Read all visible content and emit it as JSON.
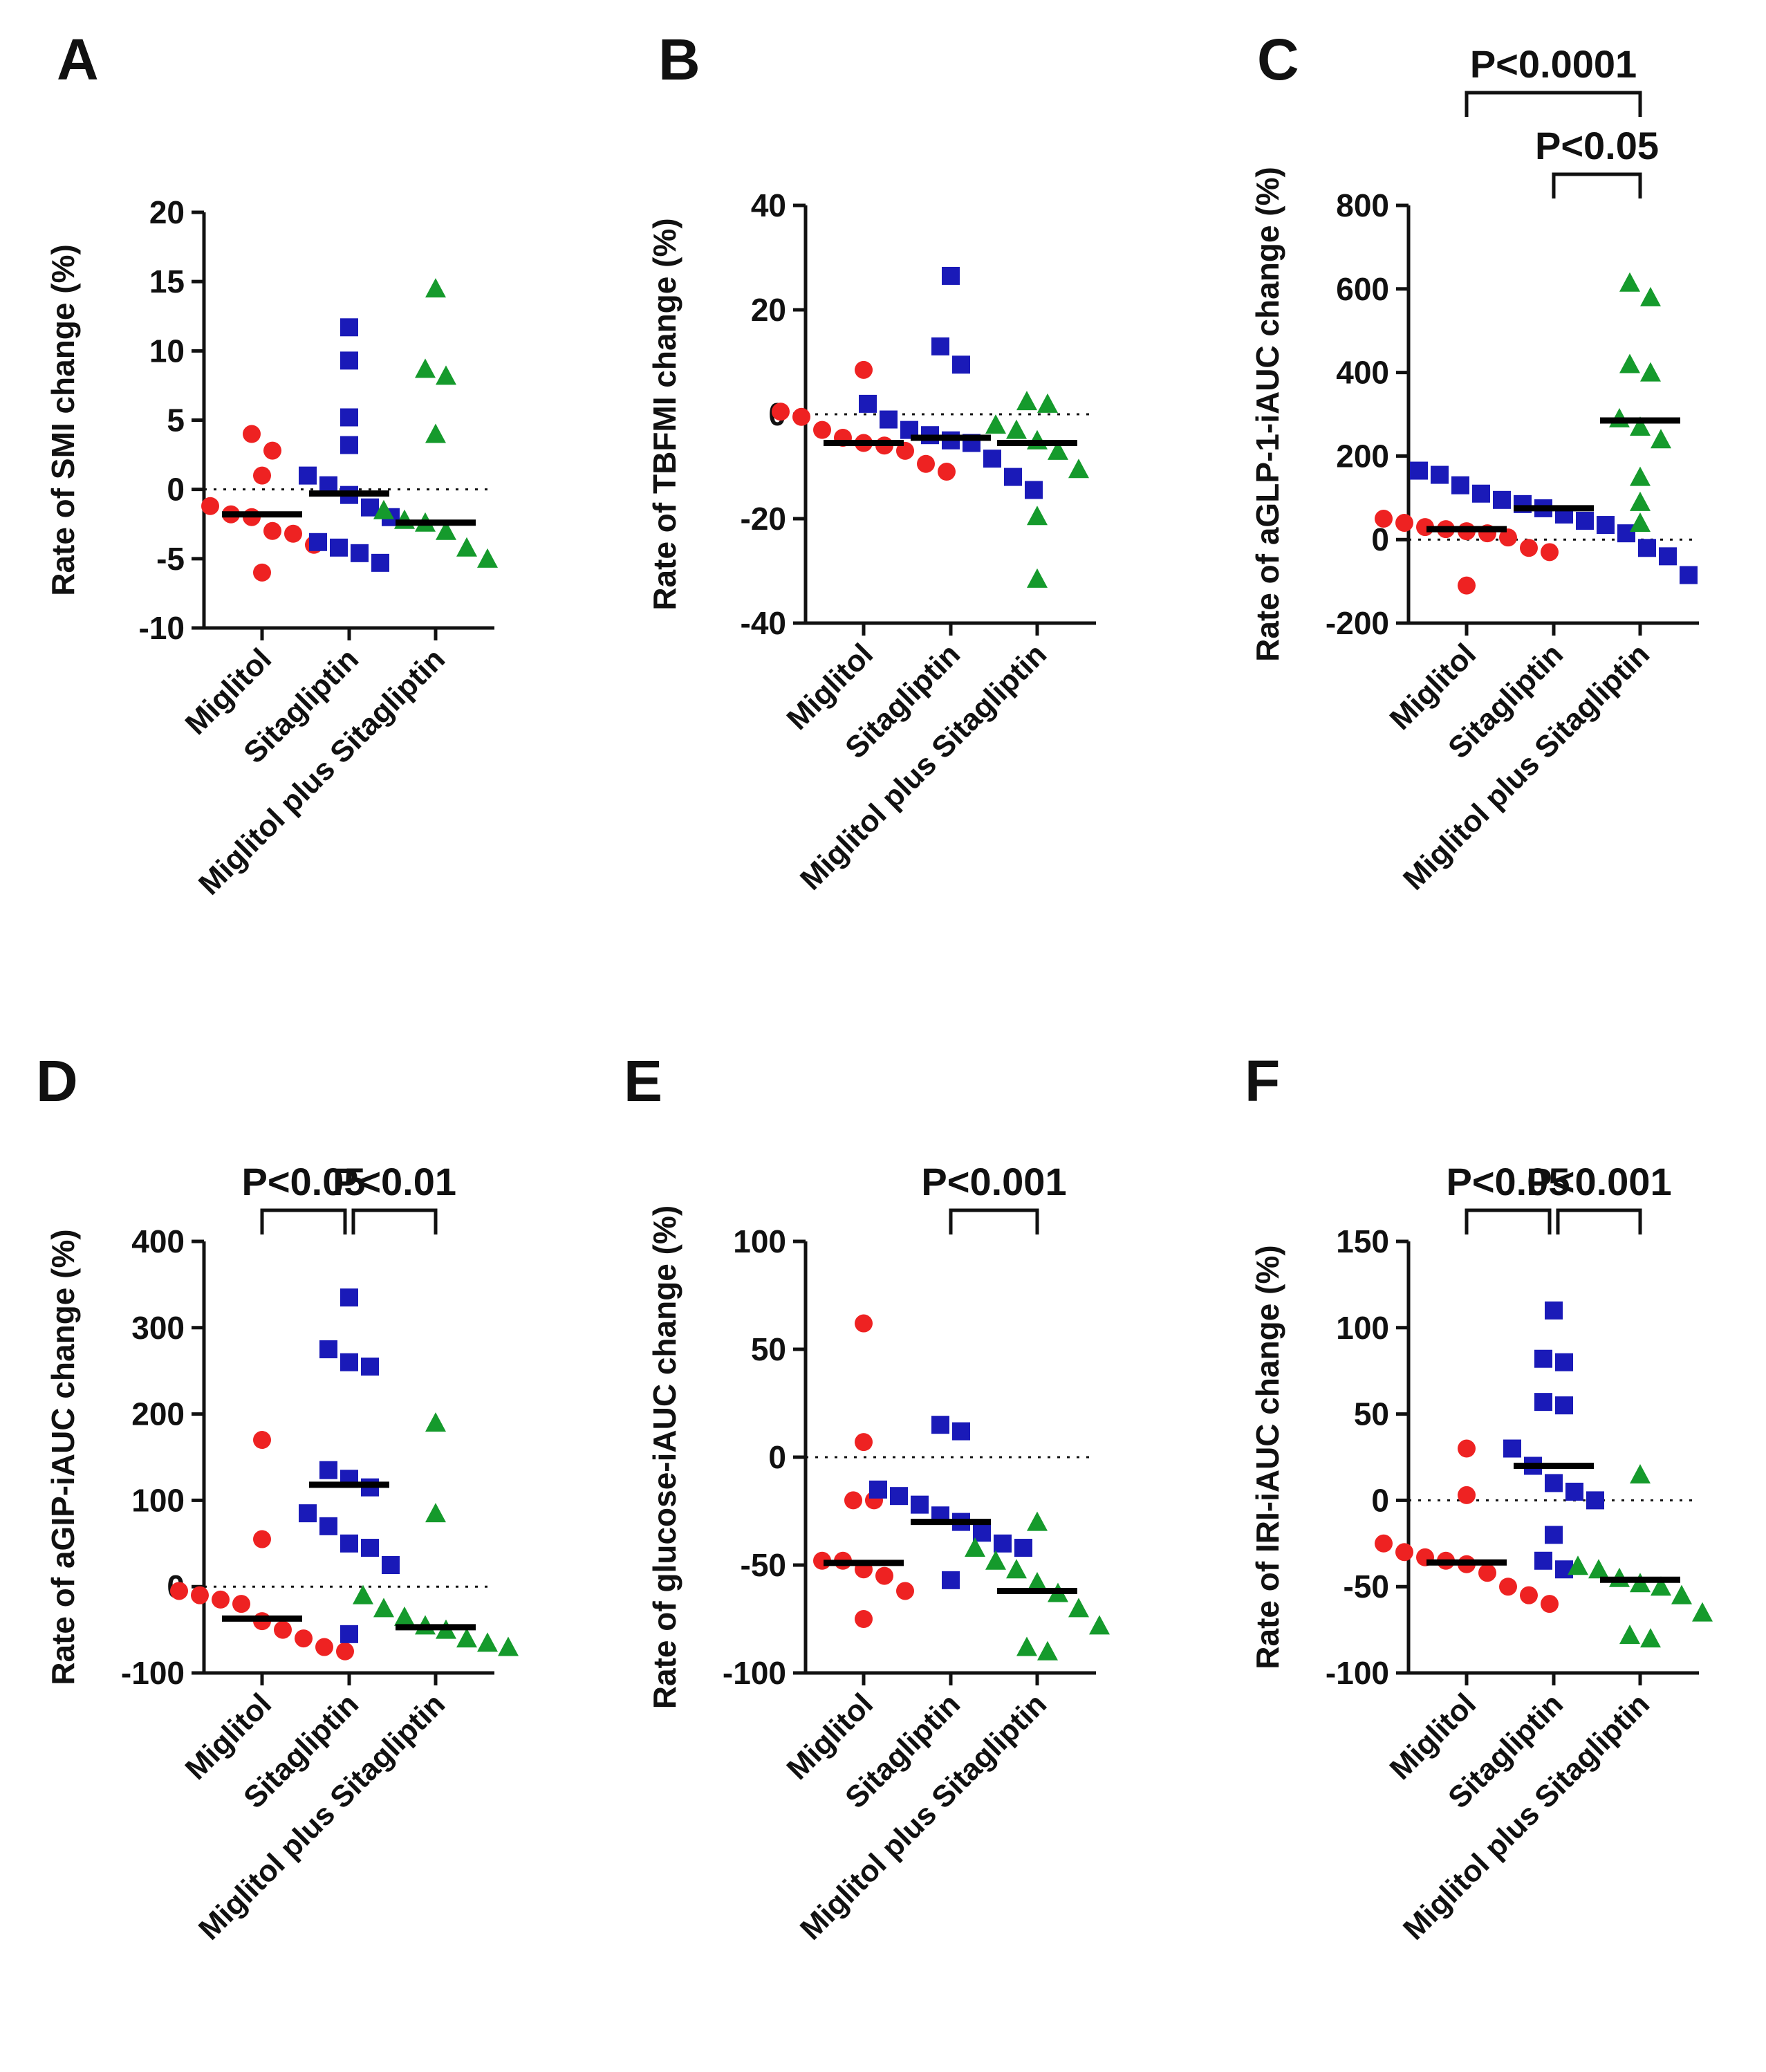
{
  "figure": {
    "groups": [
      "Miglitol",
      "Sitagliptin",
      "Miglitol plus Sitagliptin"
    ],
    "colors": {
      "Miglitol": "#ee2222",
      "Sitagliptin": "#1a1ab8",
      "Miglitol plus Sitagliptin": "#159a2c"
    },
    "median_color": "#000000"
  },
  "chart_data": [
    {
      "panel": "A",
      "type": "scatter",
      "ylabel": "Rate of SMI change (%)",
      "ylim": [
        -10,
        20
      ],
      "yticks": [
        -10,
        -5,
        0,
        5,
        10,
        15,
        20
      ],
      "categories": [
        "Miglitol",
        "Sitagliptin",
        "Miglitol plus Sitagliptin"
      ],
      "series": [
        {
          "name": "Miglitol",
          "marker": "circle",
          "values": [
            4.0,
            2.8,
            1.0,
            -1.2,
            -1.8,
            -2.0,
            -3.0,
            -4.0,
            -3.2,
            -6.0
          ],
          "median": -1.8
        },
        {
          "name": "Sitagliptin",
          "marker": "square",
          "values": [
            11.7,
            9.3,
            5.2,
            3.2,
            1.0,
            0.3,
            -0.4,
            -1.3,
            -2.0,
            -3.8,
            -4.2,
            -4.6,
            -5.3
          ],
          "median": -0.3
        },
        {
          "name": "Miglitol plus Sitagliptin",
          "marker": "triangle",
          "values": [
            14.5,
            8.7,
            8.2,
            4.0,
            -1.5,
            -2.2,
            -2.4,
            -3.0,
            -4.2,
            -5.0
          ],
          "median": -2.4
        }
      ],
      "annotations": []
    },
    {
      "panel": "B",
      "type": "scatter",
      "ylabel": "Rate of TBFMI change (%)",
      "ylim": [
        -40,
        40
      ],
      "yticks": [
        -40,
        -20,
        0,
        20,
        40
      ],
      "categories": [
        "Miglitol",
        "Sitagliptin",
        "Miglitol plus Sitagliptin"
      ],
      "series": [
        {
          "name": "Miglitol",
          "marker": "circle",
          "values": [
            8.5,
            0.5,
            -0.5,
            -3.0,
            -4.5,
            -5.5,
            -6.0,
            -7.0,
            -9.5,
            -11.0
          ],
          "median": -5.5
        },
        {
          "name": "Sitagliptin",
          "marker": "square",
          "values": [
            26.5,
            13.0,
            9.5,
            2.0,
            -1.0,
            -3.0,
            -4.0,
            -5.0,
            -5.5,
            -8.5,
            -12.0,
            -14.5
          ],
          "median": -4.5
        },
        {
          "name": "Miglitol plus Sitagliptin",
          "marker": "triangle",
          "values": [
            2.5,
            2.0,
            -2.0,
            -3.0,
            -5.0,
            -7.0,
            -10.5,
            -19.5,
            -31.5
          ],
          "median": -5.5
        }
      ],
      "annotations": []
    },
    {
      "panel": "C",
      "type": "scatter",
      "ylabel": "Rate of aGLP-1-iAUC change (%)",
      "ylim": [
        -200,
        800
      ],
      "yticks": [
        -200,
        0,
        200,
        400,
        600,
        800
      ],
      "categories": [
        "Miglitol",
        "Sitagliptin",
        "Miglitol plus Sitagliptin"
      ],
      "series": [
        {
          "name": "Miglitol",
          "marker": "circle",
          "values": [
            50,
            40,
            30,
            25,
            20,
            15,
            5,
            -20,
            -30,
            -110
          ],
          "median": 25
        },
        {
          "name": "Sitagliptin",
          "marker": "square",
          "values": [
            165,
            155,
            130,
            110,
            95,
            85,
            75,
            60,
            45,
            35,
            15,
            -20,
            -40,
            -85
          ],
          "median": 75
        },
        {
          "name": "Miglitol plus Sitagliptin",
          "marker": "triangle",
          "values": [
            615,
            580,
            420,
            400,
            290,
            270,
            240,
            150,
            90,
            40
          ],
          "median": 285
        }
      ],
      "annotations": [
        {
          "from": "Miglitol",
          "to": "Miglitol plus Sitagliptin",
          "level": 2,
          "label": "P<0.0001"
        },
        {
          "from": "Sitagliptin",
          "to": "Miglitol plus Sitagliptin",
          "level": 1,
          "label": "P<0.05"
        }
      ]
    },
    {
      "panel": "D",
      "type": "scatter",
      "ylabel": "Rate of aGIP-iAUC change (%)",
      "ylim": [
        -100,
        400
      ],
      "yticks": [
        -100,
        0,
        100,
        200,
        300,
        400
      ],
      "categories": [
        "Miglitol",
        "Sitagliptin",
        "Miglitol plus Sitagliptin"
      ],
      "series": [
        {
          "name": "Miglitol",
          "marker": "circle",
          "values": [
            170,
            55,
            -5,
            -10,
            -15,
            -20,
            -40,
            -50,
            -60,
            -70,
            -75
          ],
          "median": -37
        },
        {
          "name": "Sitagliptin",
          "marker": "square",
          "values": [
            335,
            275,
            260,
            255,
            135,
            125,
            115,
            85,
            70,
            50,
            45,
            25,
            -55
          ],
          "median": 118
        },
        {
          "name": "Miglitol plus Sitagliptin",
          "marker": "triangle",
          "values": [
            190,
            85,
            -10,
            -25,
            -35,
            -45,
            -50,
            -60,
            -65,
            -70
          ],
          "median": -47
        }
      ],
      "annotations": [
        {
          "from": "Miglitol",
          "to": "Sitagliptin",
          "level": 1,
          "label": "P<0.05"
        },
        {
          "from": "Sitagliptin",
          "to": "Miglitol plus Sitagliptin",
          "level": 1,
          "label": "P<0.01"
        }
      ]
    },
    {
      "panel": "E",
      "type": "scatter",
      "ylabel": "Rate of glucose-iAUC change (%)",
      "ylim": [
        -100,
        100
      ],
      "yticks": [
        -100,
        -50,
        0,
        50,
        100
      ],
      "categories": [
        "Miglitol",
        "Sitagliptin",
        "Miglitol plus Sitagliptin"
      ],
      "series": [
        {
          "name": "Miglitol",
          "marker": "circle",
          "values": [
            62,
            7,
            -20,
            -20,
            -48,
            -48,
            -52,
            -55,
            -62,
            -75
          ],
          "median": -49
        },
        {
          "name": "Sitagliptin",
          "marker": "square",
          "values": [
            15,
            12,
            -15,
            -18,
            -22,
            -27,
            -30,
            -35,
            -40,
            -42,
            -57
          ],
          "median": -30
        },
        {
          "name": "Miglitol plus Sitagliptin",
          "marker": "triangle",
          "values": [
            -30,
            -42,
            -48,
            -52,
            -58,
            -63,
            -70,
            -78,
            -88,
            -90
          ],
          "median": -62
        }
      ],
      "annotations": [
        {
          "from": "Sitagliptin",
          "to": "Miglitol plus Sitagliptin",
          "level": 1,
          "label": "P<0.001"
        }
      ]
    },
    {
      "panel": "F",
      "type": "scatter",
      "ylabel": "Rate of IRI-iAUC change (%)",
      "ylim": [
        -100,
        150
      ],
      "yticks": [
        -100,
        -50,
        0,
        50,
        100,
        150
      ],
      "categories": [
        "Miglitol",
        "Sitagliptin",
        "Miglitol plus Sitagliptin"
      ],
      "series": [
        {
          "name": "Miglitol",
          "marker": "circle",
          "values": [
            30,
            3,
            -25,
            -30,
            -33,
            -35,
            -37,
            -42,
            -50,
            -55,
            -60
          ],
          "median": -36
        },
        {
          "name": "Sitagliptin",
          "marker": "square",
          "values": [
            110,
            82,
            80,
            57,
            55,
            30,
            20,
            10,
            5,
            0,
            -20,
            -35,
            -40
          ],
          "median": 20
        },
        {
          "name": "Miglitol plus Sitagliptin",
          "marker": "triangle",
          "values": [
            15,
            -38,
            -40,
            -45,
            -48,
            -50,
            -55,
            -65,
            -78,
            -80
          ],
          "median": -46
        }
      ],
      "annotations": [
        {
          "from": "Miglitol",
          "to": "Sitagliptin",
          "level": 1,
          "label": "P<0.05"
        },
        {
          "from": "Sitagliptin",
          "to": "Miglitol plus Sitagliptin",
          "level": 1,
          "label": "P<0.001"
        }
      ]
    }
  ]
}
